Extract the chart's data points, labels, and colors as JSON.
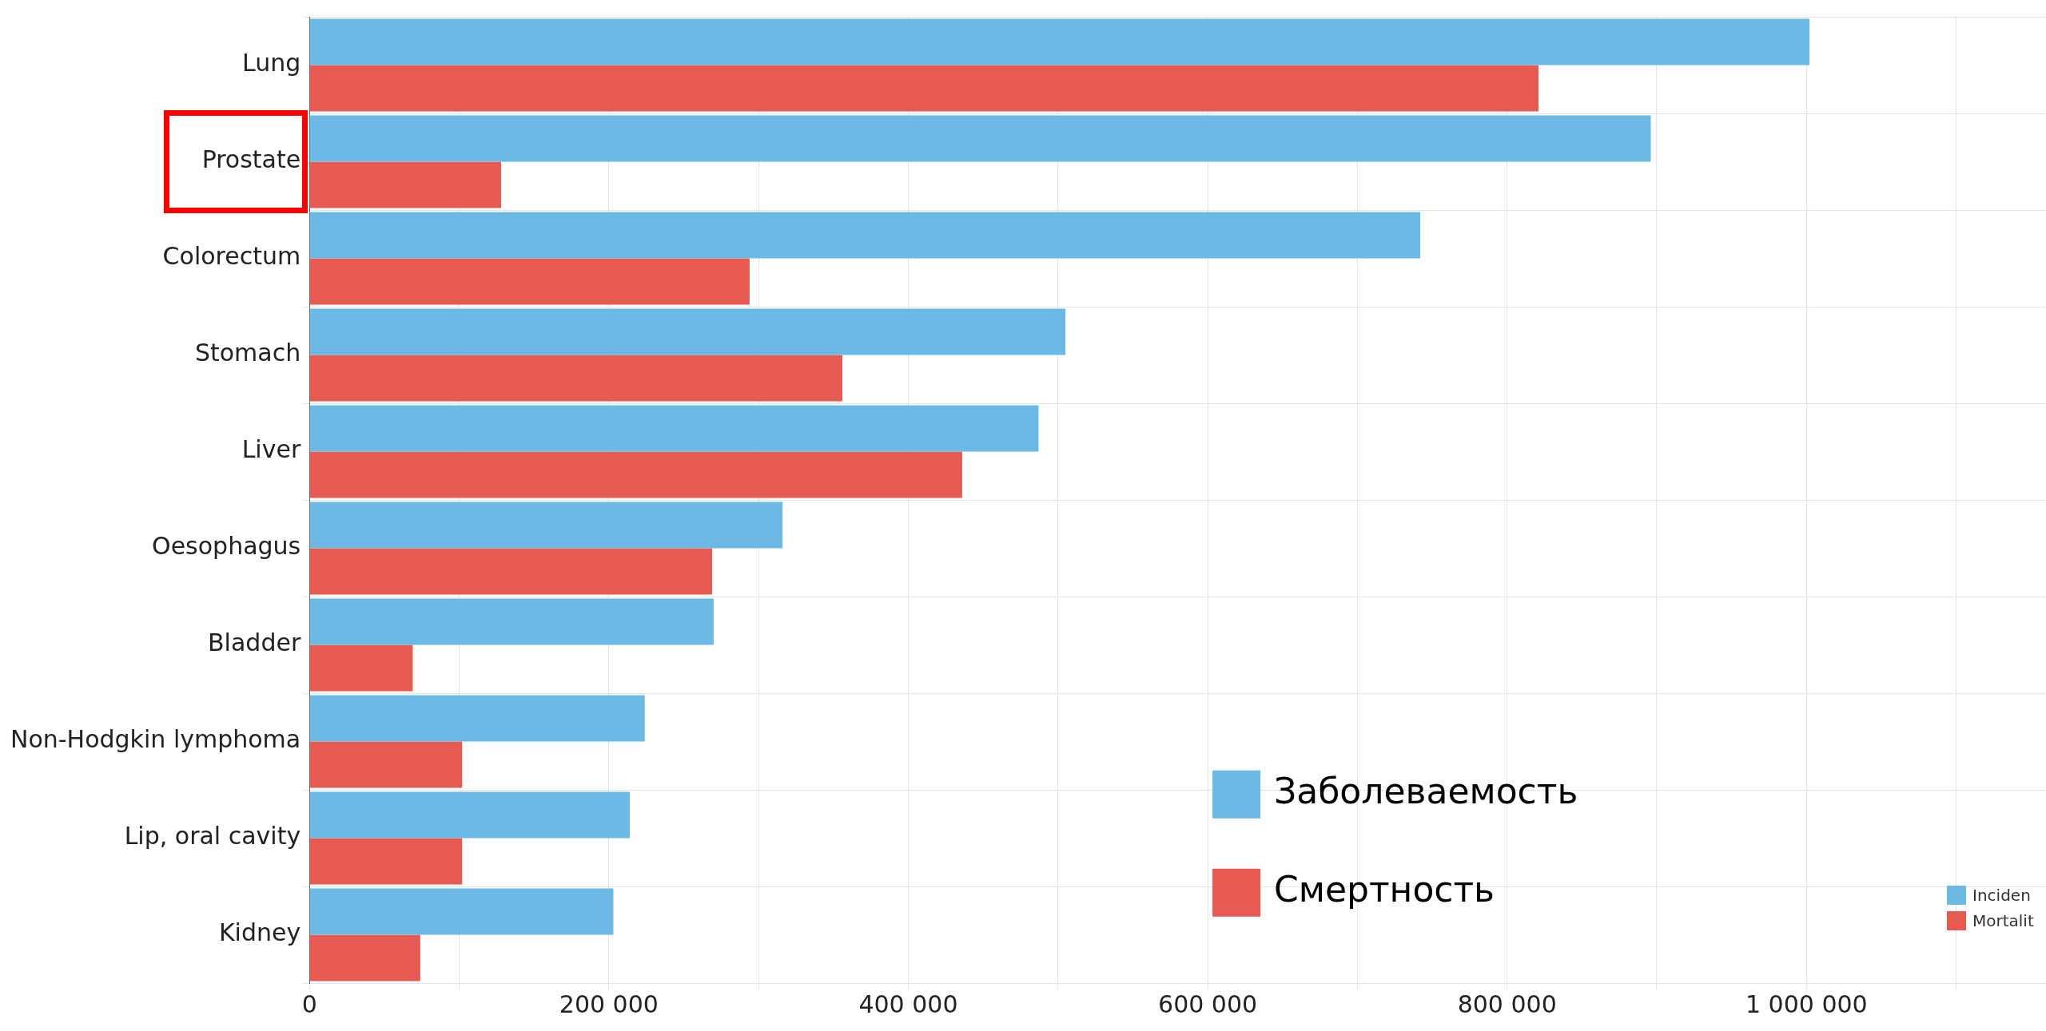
{
  "chart_data": {
    "type": "bar",
    "orientation": "horizontal",
    "categories": [
      "Lung",
      "Prostate",
      "Colorectum",
      "Stomach",
      "Liver",
      "Oesophagus",
      "Bladder",
      "Non-Hodgkin lymphoma",
      "Lip, oral cavity",
      "Kidney"
    ],
    "series": [
      {
        "name": "Заболеваемость",
        "color": "#6bb9e4",
        "values": [
          1002000,
          896000,
          742000,
          505000,
          487000,
          316000,
          270000,
          224000,
          214000,
          203000
        ]
      },
      {
        "name": "Смертность",
        "color": "#e65a52",
        "values": [
          821000,
          128000,
          294000,
          356000,
          436000,
          269000,
          69000,
          102000,
          102000,
          74000
        ]
      }
    ],
    "xlim": [
      0,
      1160000
    ],
    "xticks": [
      {
        "value": 0,
        "label": "0"
      },
      {
        "value": 100000,
        "label": null
      },
      {
        "value": 200000,
        "label": "200 000"
      },
      {
        "value": 300000,
        "label": null
      },
      {
        "value": 400000,
        "label": "400 000"
      },
      {
        "value": 500000,
        "label": null
      },
      {
        "value": 600000,
        "label": "600 000"
      },
      {
        "value": 700000,
        "label": null
      },
      {
        "value": 800000,
        "label": "800 000"
      },
      {
        "value": 900000,
        "label": null
      },
      {
        "value": 1000000,
        "label": "1 000 000"
      },
      {
        "value": 1100000,
        "label": null
      }
    ],
    "grid": true,
    "legend": "bottom right",
    "annotations": [
      "Inciden",
      "Mortalit"
    ]
  }
}
